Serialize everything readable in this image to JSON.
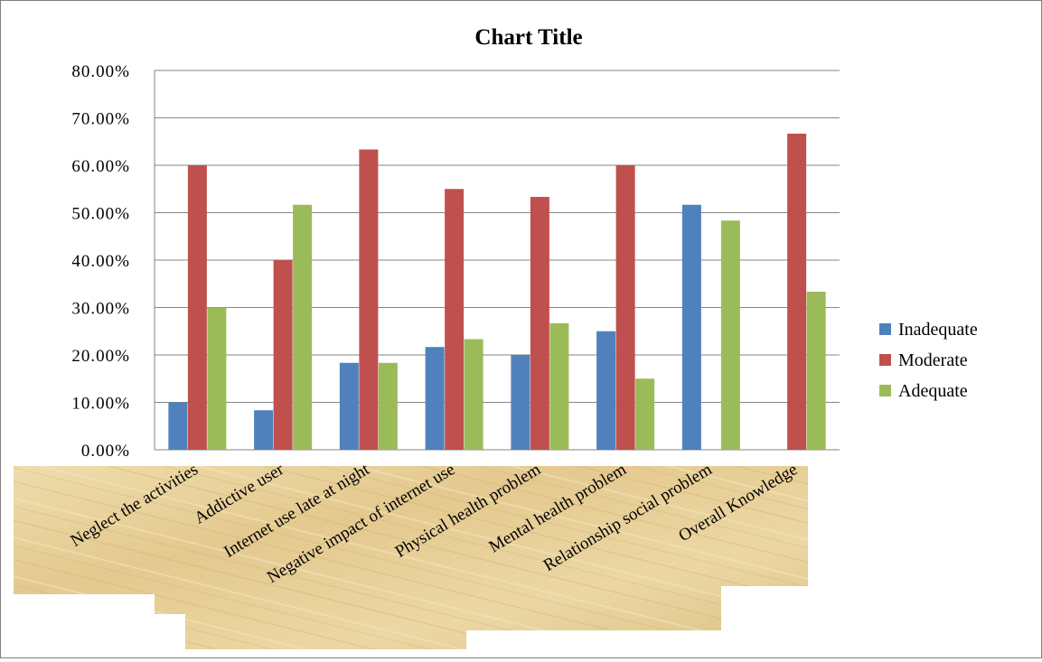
{
  "chart_data": {
    "type": "bar",
    "title": "Chart Title",
    "categories": [
      "Neglect the activities",
      "Addictive user",
      "Internet use late at night",
      "Negative impact of internet use",
      "Physical health problem",
      "Mental health problem",
      "Relationship social problem",
      "Overall Knowledge"
    ],
    "series": [
      {
        "name": "Inadequate",
        "color": "#4F81BD",
        "values": [
          0.1,
          0.0833,
          0.1833,
          0.2167,
          0.2,
          0.25,
          0.5167,
          0
        ]
      },
      {
        "name": "Moderate",
        "color": "#C0504D",
        "values": [
          0.6,
          0.4,
          0.6333,
          0.55,
          0.5333,
          0.6,
          0,
          0.6667
        ]
      },
      {
        "name": "Adequate",
        "color": "#9BBB59",
        "values": [
          0.3,
          0.5167,
          0.1833,
          0.2333,
          0.2667,
          0.15,
          0.4833,
          0.3333
        ]
      }
    ],
    "yticks": [
      "0.00%",
      "10.00%",
      "20.00%",
      "30.00%",
      "40.00%",
      "50.00%",
      "60.00%",
      "70.00%",
      "80.00%"
    ],
    "ylim": [
      0,
      0.8
    ],
    "grid": true,
    "legend_position": "right",
    "label_background": "parchment texture"
  }
}
